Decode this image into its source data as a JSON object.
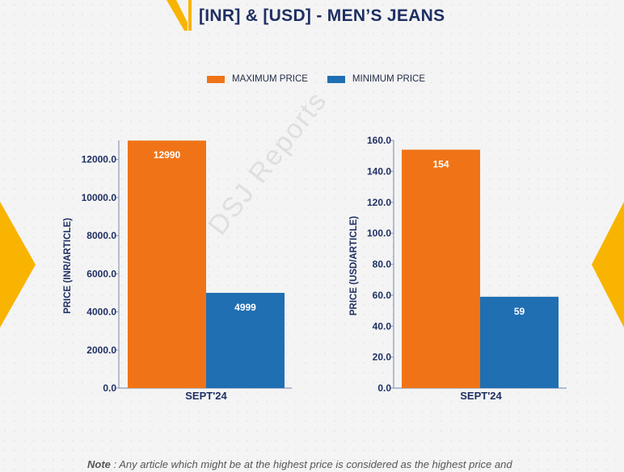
{
  "header": {
    "title": "[INR] & [USD] - MEN’S JEANS"
  },
  "legend": {
    "items": [
      {
        "label": "MAXIMUM PRICE",
        "color": "#f07417"
      },
      {
        "label": "MINIMUM PRICE",
        "color": "#1f6fb2"
      }
    ]
  },
  "watermark": {
    "text": "DSJ Reports"
  },
  "note": {
    "label": "Note",
    "text": " : Any article which might be at the highest price is considered as the highest price and"
  },
  "chart_data": [
    {
      "type": "bar",
      "categories": [
        "SEPT'24"
      ],
      "series": [
        {
          "name": "MAXIMUM PRICE",
          "values": [
            12990
          ],
          "labels": [
            "12990"
          ],
          "color": "#f07417"
        },
        {
          "name": "MINIMUM PRICE",
          "values": [
            4999
          ],
          "labels": [
            "4999"
          ],
          "color": "#1f6fb2"
        }
      ],
      "ylabel": "PRICE (INR/ARTICLE)",
      "xlabel": "",
      "ylim": [
        0,
        13000
      ],
      "yticks": [
        0,
        2000,
        4000,
        6000,
        8000,
        10000,
        12000
      ],
      "ytick_labels": [
        "0.0",
        "2000.0",
        "4000.0",
        "6000.0",
        "8000.0",
        "10000.0",
        "12000.0"
      ],
      "grid": false
    },
    {
      "type": "bar",
      "categories": [
        "SEPT'24"
      ],
      "series": [
        {
          "name": "MAXIMUM PRICE",
          "values": [
            154
          ],
          "labels": [
            "154"
          ],
          "color": "#f07417"
        },
        {
          "name": "MINIMUM PRICE",
          "values": [
            59
          ],
          "labels": [
            "59"
          ],
          "color": "#1f6fb2"
        }
      ],
      "ylabel": "PRICE (USD/ARTICLE)",
      "xlabel": "",
      "ylim": [
        0,
        160
      ],
      "yticks": [
        0,
        20,
        40,
        60,
        80,
        100,
        120,
        140,
        160
      ],
      "ytick_labels": [
        "0.0",
        "20.0",
        "40.0",
        "60.0",
        "80.0",
        "100.0",
        "120.0",
        "140.0",
        "160.0"
      ],
      "grid": false
    }
  ]
}
